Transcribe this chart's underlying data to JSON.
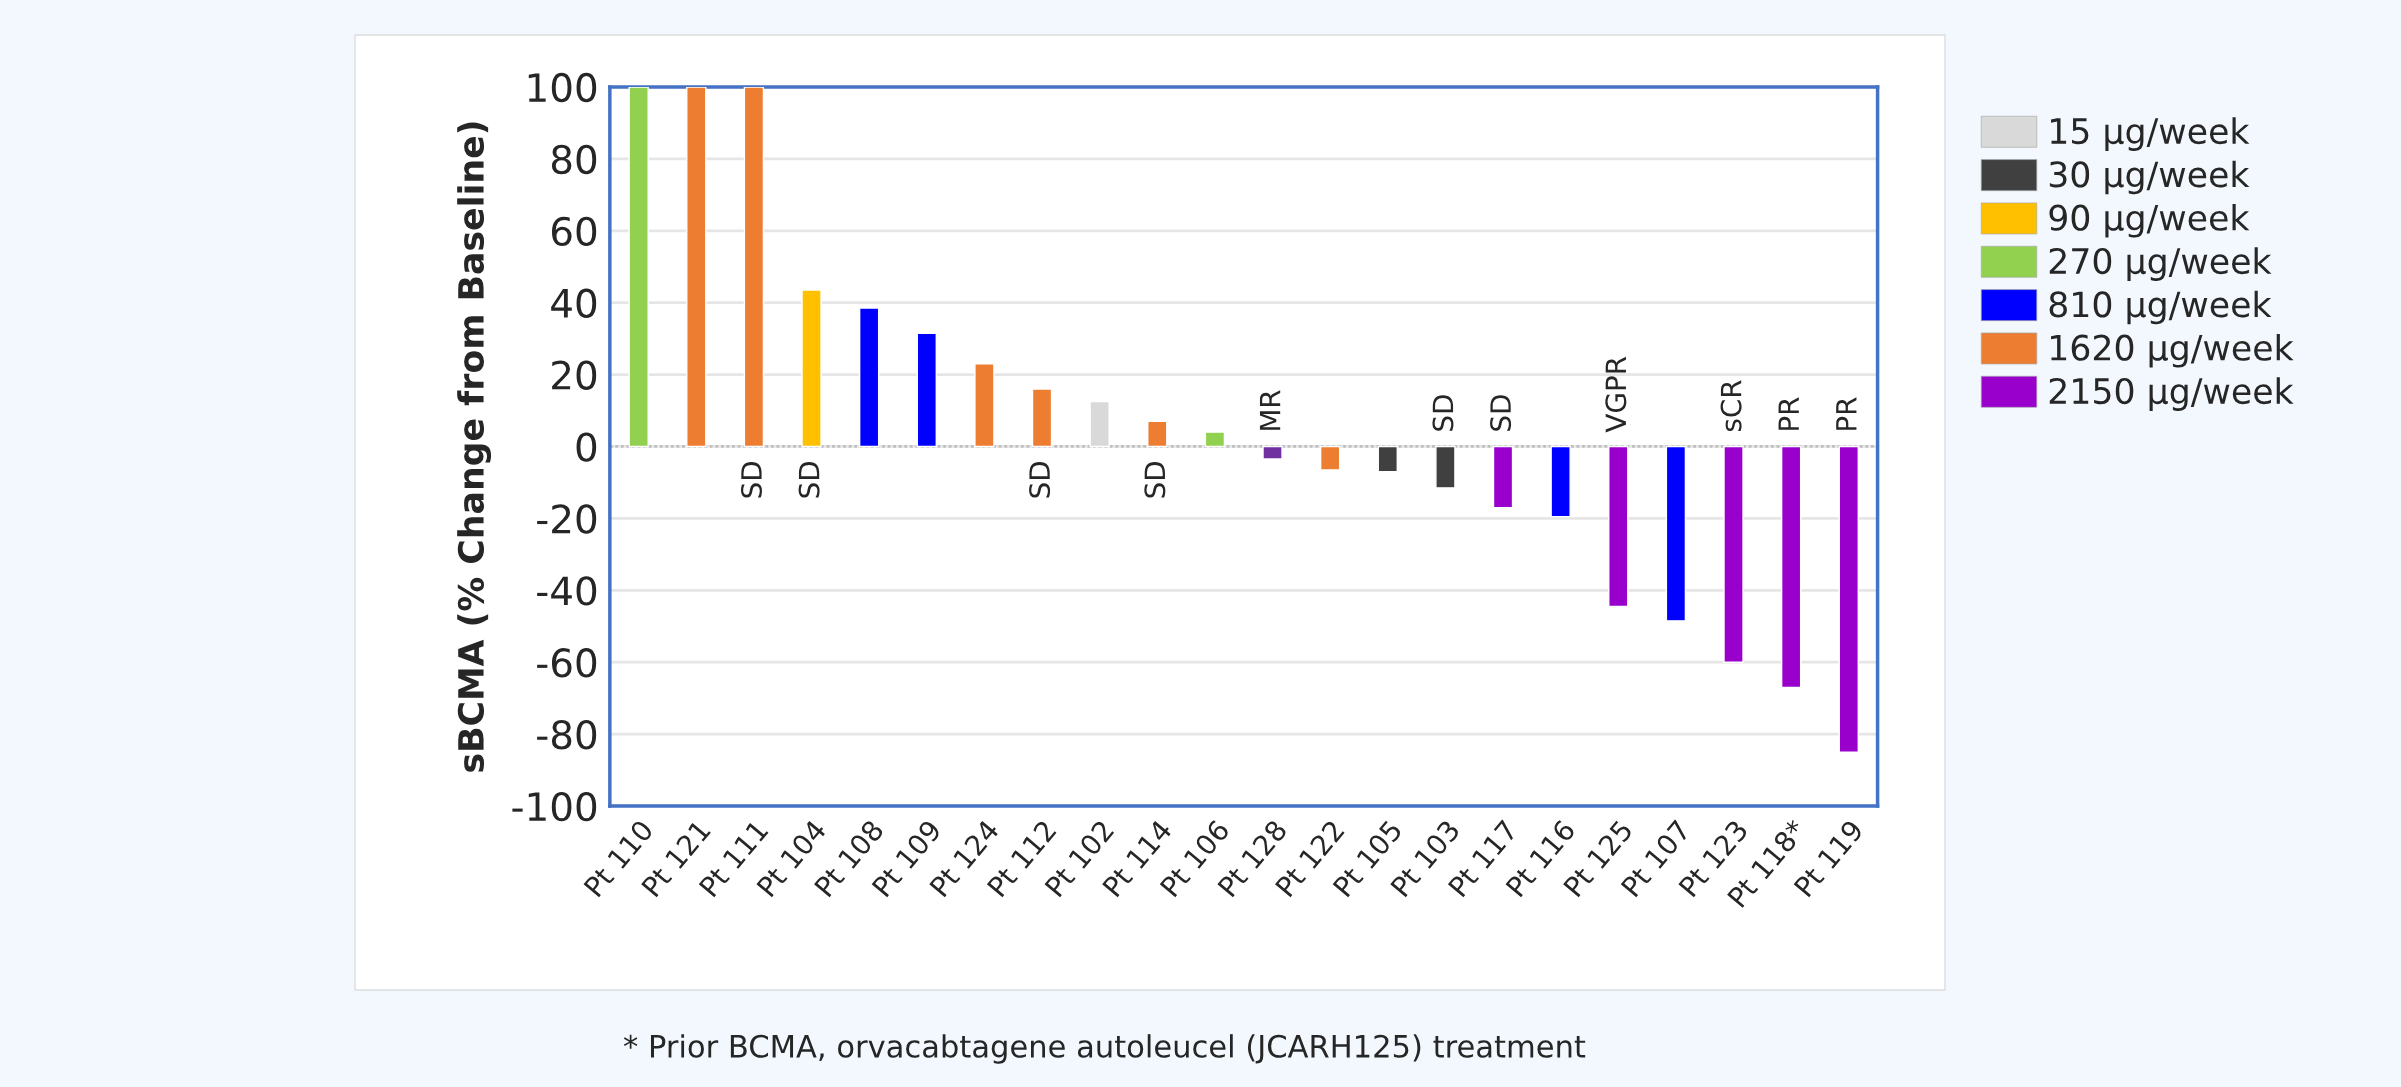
{
  "chart_data": {
    "type": "bar",
    "ylabel": "sBCMA (% Change from Baseline)",
    "categories": [
      "Pt 110",
      "Pt 121",
      "Pt 111",
      "Pt 104",
      "Pt 108",
      "Pt 109",
      "Pt 124",
      "Pt 112",
      "Pt 102",
      "Pt 114",
      "Pt 106",
      "Pt 128",
      "Pt 122",
      "Pt 105",
      "Pt 103",
      "Pt 117",
      "Pt 116",
      "Pt 125",
      "Pt 107",
      "Pt 123",
      "Pt 118*",
      "Pt 119"
    ],
    "series": [
      {
        "name": "15 µg/week",
        "color": "#d9d9d9",
        "values": [
          null,
          null,
          null,
          null,
          null,
          null,
          null,
          null,
          12.5,
          null,
          null,
          null,
          null,
          null,
          null,
          null,
          null,
          null,
          null,
          null,
          null,
          null
        ]
      },
      {
        "name": "30 µg/week",
        "color": "#404040",
        "values": [
          null,
          null,
          null,
          null,
          null,
          null,
          null,
          null,
          null,
          null,
          null,
          null,
          null,
          -7,
          -11.5,
          null,
          null,
          null,
          null,
          null,
          null,
          null
        ]
      },
      {
        "name": "90 µg/week",
        "color": "#ffc000",
        "values": [
          null,
          null,
          null,
          43.5,
          null,
          null,
          null,
          null,
          null,
          null,
          null,
          null,
          null,
          null,
          null,
          null,
          null,
          null,
          null,
          null,
          null,
          null
        ]
      },
      {
        "name": "270 µg/week",
        "color": "#92d050",
        "values": [
          100,
          null,
          null,
          null,
          null,
          null,
          null,
          null,
          null,
          null,
          4,
          null,
          null,
          null,
          null,
          null,
          null,
          null,
          null,
          null,
          null,
          null
        ]
      },
      {
        "name": "810 µg/week",
        "color": "#0000ff",
        "values": [
          null,
          null,
          null,
          null,
          38.5,
          31.5,
          null,
          null,
          null,
          null,
          null,
          null,
          null,
          null,
          null,
          null,
          -19.5,
          null,
          -48.5,
          null,
          null,
          null
        ]
      },
      {
        "name": "1620 µg/week",
        "color": "#ed7d31",
        "values": [
          null,
          100,
          100,
          null,
          null,
          null,
          23,
          16,
          null,
          7,
          null,
          null,
          -6.5,
          null,
          null,
          null,
          null,
          null,
          null,
          null,
          null,
          null
        ]
      },
      {
        "name": "2150 µg/week",
        "color": "#9900cc",
        "colors": [
          null,
          null,
          null,
          null,
          null,
          null,
          null,
          null,
          null,
          null,
          null,
          "#7030a0",
          null,
          null,
          null,
          null,
          null,
          null,
          null,
          null,
          null,
          null
        ],
        "values": [
          null,
          null,
          null,
          null,
          null,
          null,
          null,
          null,
          null,
          null,
          null,
          -3.5,
          null,
          null,
          null,
          -17,
          null,
          -44.5,
          null,
          -60,
          -67,
          -85
        ]
      }
    ],
    "ylim": [
      -100,
      100
    ],
    "yticks": [
      -100,
      -80,
      -60,
      -40,
      -20,
      0,
      20,
      40,
      60,
      80,
      100
    ],
    "grid": "y",
    "ref_lines": [
      {
        "axis": "y",
        "value": 0,
        "color": "#bfbfbf",
        "line_style": "dotted"
      }
    ],
    "legend": "right",
    "annotations": [
      {
        "text": "SD",
        "x": "Pt 111",
        "y": 0
      },
      {
        "text": "SD",
        "x": "Pt 104",
        "y": 0
      },
      {
        "text": "SD",
        "x": "Pt 112",
        "y": 0
      },
      {
        "text": "SD",
        "x": "Pt 114",
        "y": 0
      },
      {
        "text": "MR",
        "x": "Pt 128",
        "y": 0
      },
      {
        "text": "SD",
        "x": "Pt 103",
        "y": 0
      },
      {
        "text": "SD",
        "x": "Pt 117",
        "y": 0
      },
      {
        "text": "VGPR",
        "x": "Pt 125",
        "y": 0
      },
      {
        "text": "sCR",
        "x": "Pt 123",
        "y": 0
      },
      {
        "text": "PR",
        "x": "Pt 118*",
        "y": 0
      },
      {
        "text": "PR",
        "x": "Pt 119",
        "y": 0
      },
      "* Prior BCMA, orvacabtagene autoleucel (JCARH125) treatment"
    ]
  }
}
